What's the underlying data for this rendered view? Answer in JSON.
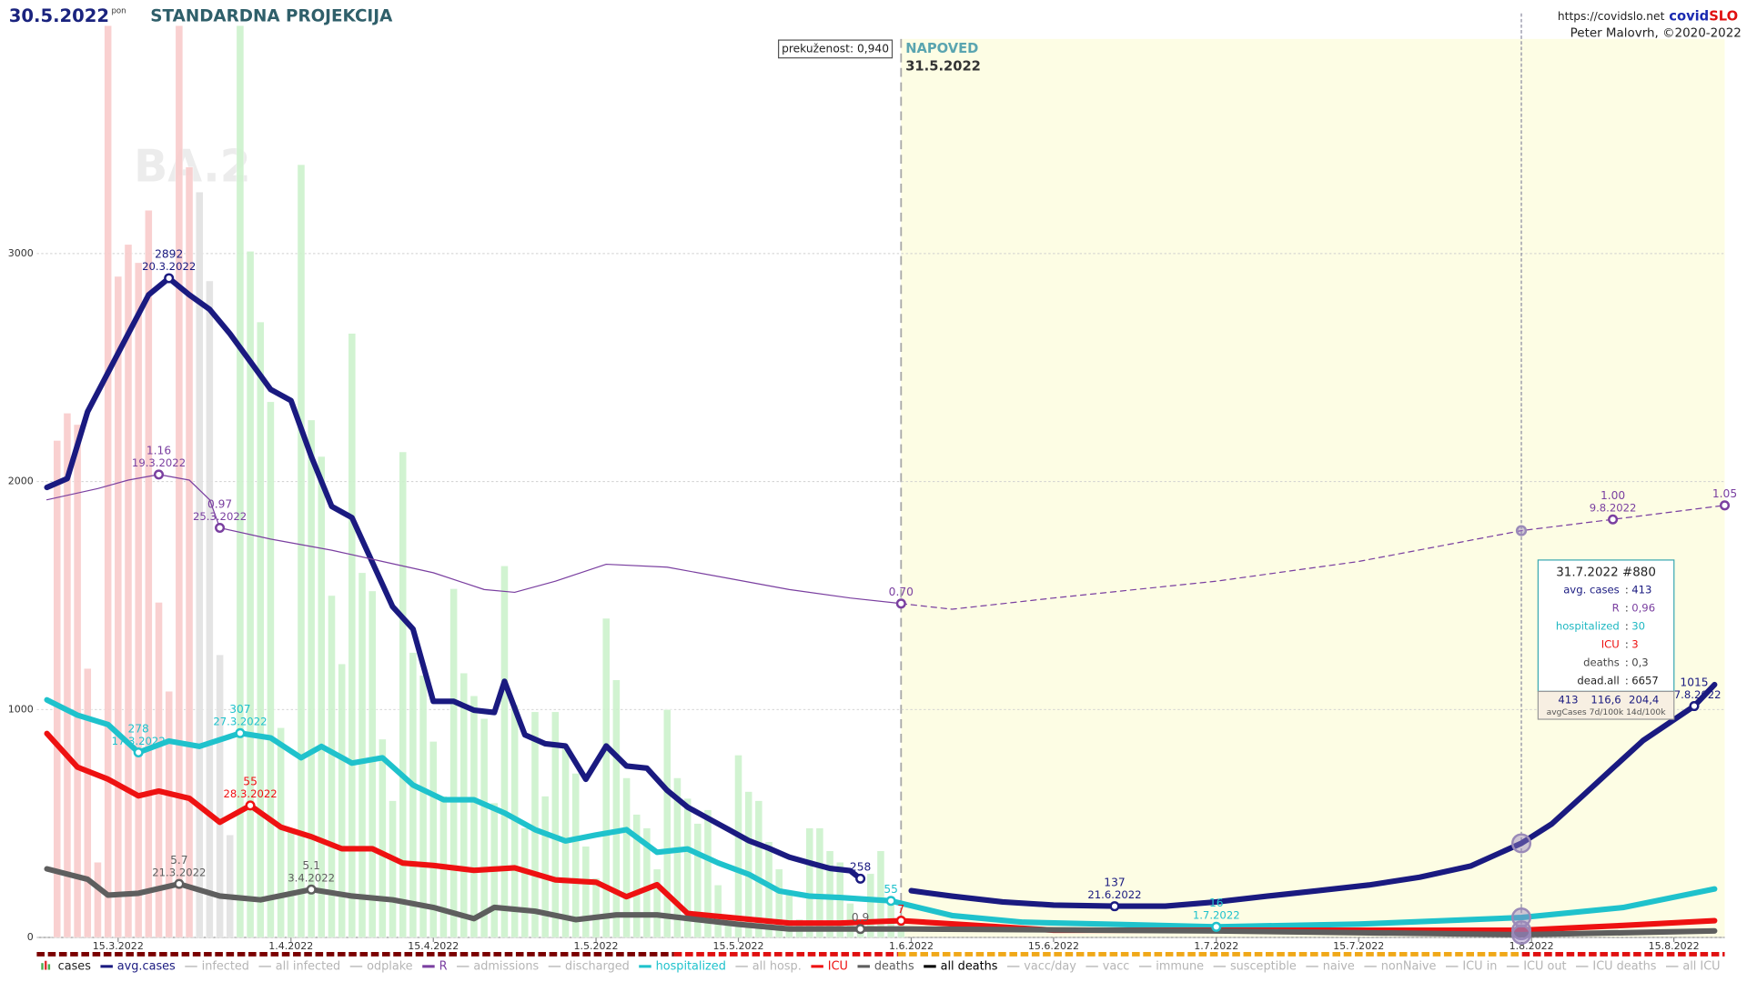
{
  "chart_data": {
    "type": "line",
    "date": "30.5.2022",
    "weekday": "pon",
    "title": "STANDARDNA PROJEKCIJA",
    "source_url": "https://covidslo.net",
    "brand": [
      "covid",
      "SLO"
    ],
    "author": "Peter Malovrh, ©2020-2022",
    "immunity_label": "prekuženost: 0,940",
    "watermark": "BA.2",
    "forecast": {
      "label": "NAPOVED",
      "date": "31.5.2022"
    },
    "xlim": [
      "7.3.2022",
      "20.8.2022"
    ],
    "xticks": [
      "15.3.2022",
      "1.4.2022",
      "15.4.2022",
      "1.5.2022",
      "15.5.2022",
      "1.6.2022",
      "15.6.2022",
      "1.7.2022",
      "15.7.2022",
      "1.8.2022",
      "15.8.2022"
    ],
    "ylim": [
      0,
      4000
    ],
    "yticks": [
      0,
      1000,
      2000,
      3000
    ],
    "grid": true,
    "series": [
      {
        "name": "cases",
        "type": "bar",
        "active": true,
        "color": "#4caf50",
        "x": [
          "9.3.2022",
          "10.3.2022",
          "11.3.2022",
          "12.3.2022",
          "13.3.2022",
          "14.3.2022",
          "15.3.2022",
          "16.3.2022",
          "17.3.2022",
          "18.3.2022",
          "19.3.2022",
          "20.3.2022",
          "21.3.2022",
          "22.3.2022",
          "23.3.2022",
          "24.3.2022",
          "25.3.2022",
          "26.3.2022",
          "27.3.2022",
          "28.3.2022",
          "29.3.2022",
          "30.3.2022",
          "31.3.2022",
          "1.4.2022",
          "2.4.2022",
          "3.4.2022",
          "4.4.2022",
          "5.4.2022",
          "6.4.2022",
          "7.4.2022",
          "8.4.2022",
          "9.4.2022",
          "10.4.2022",
          "11.4.2022",
          "12.4.2022",
          "13.4.2022",
          "14.4.2022",
          "15.4.2022",
          "16.4.2022",
          "17.4.2022",
          "18.4.2022",
          "19.4.2022",
          "20.4.2022",
          "21.4.2022",
          "22.4.2022",
          "23.4.2022",
          "24.4.2022",
          "25.4.2022",
          "26.4.2022",
          "27.4.2022",
          "28.4.2022",
          "29.4.2022",
          "30.4.2022",
          "1.5.2022",
          "2.5.2022",
          "3.5.2022",
          "4.5.2022",
          "5.5.2022",
          "6.5.2022",
          "7.5.2022",
          "8.5.2022",
          "9.5.2022",
          "10.5.2022",
          "11.5.2022",
          "12.5.2022",
          "13.5.2022",
          "14.5.2022",
          "15.5.2022",
          "16.5.2022",
          "17.5.2022",
          "18.5.2022",
          "19.5.2022",
          "20.5.2022",
          "21.5.2022",
          "22.5.2022",
          "23.5.2022",
          "24.5.2022",
          "25.5.2022",
          "26.5.2022",
          "27.5.2022",
          "28.5.2022",
          "29.5.2022",
          "30.5.2022",
          "31.5.2022"
        ],
        "values": [
          2180,
          2300,
          2250,
          1180,
          330,
          4000,
          2900,
          3040,
          2960,
          3190,
          1470,
          1080,
          4000,
          3380,
          3270,
          2880,
          1240,
          450,
          4000,
          3010,
          2700,
          2350,
          920,
          480,
          3390,
          2270,
          2110,
          1500,
          1200,
          2650,
          1600,
          1520,
          870,
          600,
          2130,
          1250,
          1150,
          860,
          620,
          1530,
          1160,
          1060,
          960,
          590,
          1630,
          1020,
          480,
          990,
          620,
          990,
          830,
          720,
          400,
          260,
          1400,
          1130,
          700,
          540,
          480,
          300,
          1000,
          700,
          610,
          500,
          560,
          230,
          100,
          800,
          640,
          600,
          420,
          300,
          190,
          80,
          480,
          480,
          380,
          330,
          150,
          80,
          280,
          380,
          170,
          60
        ],
        "colors": [
          "#f9cccc",
          "#f9cccc",
          "#f9cccc",
          "#f9cccc",
          "#f9cccc",
          "#f9cccc",
          "#f9cccc",
          "#f9cccc",
          "#f9cccc",
          "#f9cccc",
          "#f9cccc",
          "#f9cccc",
          "#f9cccc",
          "#f9cccc",
          "#e2e2e2",
          "#e2e2e2",
          "#e2e2e2",
          "#e2e2e2",
          "#cdf2cd",
          "#cdf2cd",
          "#cdf2cd",
          "#cdf2cd",
          "#cdf2cd",
          "#cdf2cd",
          "#cdf2cd",
          "#cdf2cd",
          "#cdf2cd",
          "#cdf2cd",
          "#cdf2cd",
          "#cdf2cd",
          "#cdf2cd",
          "#cdf2cd",
          "#cdf2cd",
          "#cdf2cd",
          "#cdf2cd",
          "#cdf2cd",
          "#cdf2cd",
          "#cdf2cd",
          "#cdf2cd",
          "#cdf2cd",
          "#cdf2cd",
          "#cdf2cd",
          "#cdf2cd",
          "#cdf2cd",
          "#cdf2cd",
          "#cdf2cd",
          "#cdf2cd",
          "#cdf2cd",
          "#cdf2cd",
          "#cdf2cd",
          "#cdf2cd",
          "#cdf2cd",
          "#cdf2cd",
          "#cdf2cd",
          "#cdf2cd",
          "#cdf2cd",
          "#cdf2cd",
          "#cdf2cd",
          "#cdf2cd",
          "#cdf2cd",
          "#cdf2cd",
          "#cdf2cd",
          "#cdf2cd",
          "#cdf2cd",
          "#cdf2cd",
          "#cdf2cd",
          "#cdf2cd",
          "#cdf2cd",
          "#cdf2cd",
          "#cdf2cd",
          "#cdf2cd",
          "#cdf2cd",
          "#cdf2cd",
          "#cdf2cd",
          "#cdf2cd",
          "#cdf2cd",
          "#cdf2cd",
          "#cdf2cd",
          "#cdf2cd",
          "#cdf2cd",
          "#cdf2cd",
          "#cdf2cd",
          "#cdf2cd",
          "#cdf2cd"
        ]
      },
      {
        "name": "avg.cases",
        "type": "line",
        "active": true,
        "color": "#1a1a80",
        "line_width": 5,
        "x": [
          "8.3.2022",
          "10.3.2022",
          "12.3.2022",
          "14.3.2022",
          "16.3.2022",
          "18.3.2022",
          "20.3.2022",
          "22.3.2022",
          "24.3.2022",
          "26.3.2022",
          "28.3.2022",
          "30.3.2022",
          "1.4.2022",
          "3.4.2022",
          "5.4.2022",
          "7.4.2022",
          "9.4.2022",
          "11.4.2022",
          "13.4.2022",
          "15.4.2022",
          "17.4.2022",
          "19.4.2022",
          "21.4.2022",
          "22.4.2022",
          "24.4.2022",
          "26.4.2022",
          "28.4.2022",
          "30.4.2022",
          "2.5.2022",
          "4.5.2022",
          "6.5.2022",
          "8.5.2022",
          "10.5.2022",
          "12.5.2022",
          "14.5.2022",
          "16.5.2022",
          "18.5.2022",
          "20.5.2022",
          "22.5.2022",
          "24.5.2022",
          "26.5.2022",
          "27.5.2022",
          "31.5.2022",
          "1.6.2022",
          "5.6.2022",
          "10.6.2022",
          "15.6.2022",
          "21.6.2022",
          "26.6.2022",
          "1.7.2022",
          "6.7.2022",
          "11.7.2022",
          "16.7.2022",
          "21.7.2022",
          "26.7.2022",
          "31.7.2022",
          "3.8.2022",
          "6.8.2022",
          "9.8.2022",
          "12.8.2022",
          "17.8.2022",
          "19.8.2022"
        ],
        "values": [
          1974,
          2013,
          2306,
          2477,
          2648,
          2819,
          2892,
          2819,
          2755,
          2648,
          2526,
          2404,
          2355,
          2110,
          1891,
          1842,
          1646,
          1451,
          1353,
          1036,
          1036,
          997,
          987,
          1124,
          889,
          850,
          840,
          694,
          840,
          752,
          743,
          645,
          572,
          523,
          474,
          425,
          391,
          352,
          327,
          303,
          293,
          258,
          null,
          205,
          181,
          156,
          142,
          137,
          137,
          156,
          181,
          205,
          230,
          264,
          313,
          413,
          498,
          620,
          743,
          865,
          1015,
          1109
        ],
        "annotations": [
          {
            "date": "20.3.2022",
            "value": 2892
          },
          {
            "x": "27.5.2022",
            "value": 258
          },
          {
            "date": "21.6.2022",
            "value": 137
          },
          {
            "date": "17.8.2022",
            "value": 1015
          }
        ]
      },
      {
        "name": "infected",
        "active": false,
        "color": "#c8c8c8"
      },
      {
        "name": "all infected",
        "active": false,
        "color": "#c8c8c8"
      },
      {
        "name": "odplake",
        "active": false,
        "color": "#c8c8c8"
      },
      {
        "name": "R",
        "type": "line",
        "active": true,
        "color": "#7a3fa0",
        "line_width": 1,
        "forecast_dash": true,
        "ylim": [
          -0.49,
          2.76
        ],
        "x": [
          "8.3.2022",
          "13.3.2022",
          "16.3.2022",
          "19.3.2022",
          "22.3.2022",
          "24.3.2022",
          "25.3.2022",
          "30.3.2022",
          "5.4.2022",
          "10.4.2022",
          "15.4.2022",
          "20.4.2022",
          "23.4.2022",
          "27.4.2022",
          "2.5.2022",
          "8.5.2022",
          "14.5.2022",
          "20.5.2022",
          "26.5.2022",
          "31.5.2022",
          "5.6.2022",
          "15.6.2022",
          "1.7.2022",
          "15.7.2022",
          "31.7.2022",
          "9.8.2022",
          "20.8.2022"
        ],
        "values": [
          1.07,
          1.11,
          1.14,
          1.16,
          1.14,
          1.07,
          0.97,
          0.93,
          0.89,
          0.85,
          0.81,
          0.75,
          0.74,
          0.78,
          0.84,
          0.83,
          0.79,
          0.75,
          0.72,
          0.7,
          0.68,
          0.72,
          0.78,
          0.85,
          0.96,
          1,
          1.05
        ],
        "annotations": [
          {
            "date": "19.3.2022",
            "value": 1.16
          },
          {
            "date": "25.3.2022",
            "value": 0.97
          },
          {
            "x": "31.5.2022",
            "value": 0.7,
            "label": "0.70"
          },
          {
            "date": "9.8.2022",
            "value": 1,
            "label": "1.00"
          },
          {
            "x": "20.8.2022",
            "value": 1.05
          }
        ]
      },
      {
        "name": "admissions",
        "active": false,
        "color": "#c8c8c8"
      },
      {
        "name": "discharged",
        "active": false,
        "color": "#c8c8c8"
      },
      {
        "name": "hospitalized",
        "type": "line",
        "active": true,
        "color": "#1fc2cc",
        "line_width": 5,
        "ylim": [
          0,
          1370
        ],
        "x": [
          "8.3.2022",
          "11.3.2022",
          "14.3.2022",
          "17.3.2022",
          "20.3.2022",
          "23.3.2022",
          "27.3.2022",
          "30.3.2022",
          "2.4.2022",
          "4.4.2022",
          "7.4.2022",
          "10.4.2022",
          "13.4.2022",
          "16.4.2022",
          "19.4.2022",
          "22.4.2022",
          "25.4.2022",
          "28.4.2022",
          "1.5.2022",
          "4.5.2022",
          "7.5.2022",
          "10.5.2022",
          "13.5.2022",
          "16.5.2022",
          "19.5.2022",
          "22.5.2022",
          "25.5.2022",
          "28.5.2022",
          "30.5.2022",
          "5.6.2022",
          "12.6.2022",
          "20.6.2022",
          "1.7.2022",
          "15.7.2022",
          "31.7.2022",
          "10.8.2022",
          "19.8.2022"
        ],
        "values": [
          357,
          334,
          320,
          278,
          295,
          287,
          307,
          300,
          270,
          287,
          262,
          270,
          229,
          207,
          207,
          187,
          162,
          145,
          154,
          162,
          128,
          133,
          112,
          95,
          70,
          62,
          60,
          57,
          55,
          33,
          23,
          20,
          16,
          20,
          30,
          45,
          73
        ],
        "annotations": [
          {
            "date": "17.3.2022",
            "value": 278
          },
          {
            "date": "27.3.2022",
            "value": 307
          },
          {
            "x": "30.5.2022",
            "value": 55
          },
          {
            "date": "1.7.2022",
            "value": 16
          }
        ]
      },
      {
        "name": "all hosp.",
        "active": false,
        "color": "#c8c8c8"
      },
      {
        "name": "ICU",
        "type": "line",
        "active": true,
        "color": "#ee1111",
        "line_width": 5,
        "ylim": [
          0,
          380
        ],
        "x": [
          "8.3.2022",
          "11.3.2022",
          "14.3.2022",
          "17.3.2022",
          "19.3.2022",
          "22.3.2022",
          "25.3.2022",
          "28.3.2022",
          "31.3.2022",
          "3.4.2022",
          "6.4.2022",
          "9.4.2022",
          "12.4.2022",
          "15.4.2022",
          "19.4.2022",
          "23.4.2022",
          "27.4.2022",
          "1.5.2022",
          "4.5.2022",
          "7.5.2022",
          "10.5.2022",
          "15.5.2022",
          "20.5.2022",
          "25.5.2022",
          "31.5.2022",
          "15.6.2022",
          "1.7.2022",
          "31.7.2022",
          "10.8.2022",
          "19.8.2022"
        ],
        "values": [
          85,
          71,
          66,
          59,
          61,
          58,
          48,
          55,
          46,
          42,
          37,
          37,
          31,
          30,
          28,
          29,
          24,
          23,
          17,
          22,
          10,
          8,
          6,
          6,
          7,
          3,
          3,
          3,
          5,
          7
        ],
        "annotations": [
          {
            "date": "28.3.2022",
            "value": 55
          },
          {
            "x": "31.5.2022",
            "value": 7
          }
        ]
      },
      {
        "name": "deaths",
        "type": "line",
        "active": true,
        "color": "#5e5e5e",
        "line_width": 5,
        "ylim": [
          0,
          97
        ],
        "x": [
          "8.3.2022",
          "12.3.2022",
          "14.3.2022",
          "17.3.2022",
          "21.3.2022",
          "25.3.2022",
          "29.3.2022",
          "3.4.2022",
          "7.4.2022",
          "11.4.2022",
          "15.4.2022",
          "19.4.2022",
          "21.4.2022",
          "25.4.2022",
          "29.4.2022",
          "3.5.2022",
          "7.5.2022",
          "11.5.2022",
          "15.5.2022",
          "20.5.2022",
          "27.5.2022",
          "1.6.2022",
          "1.7.2022",
          "31.7.2022",
          "19.8.2022"
        ],
        "values": [
          7.3,
          6.2,
          4.5,
          4.7,
          5.7,
          4.4,
          4,
          5.1,
          4.4,
          4,
          3.2,
          2,
          3.2,
          2.8,
          1.9,
          2.4,
          2.4,
          1.9,
          1.4,
          0.9,
          0.9,
          0.9,
          0.7,
          0.3,
          0.7
        ],
        "annotations": [
          {
            "date": "21.3.2022",
            "value": 5.7
          },
          {
            "date": "3.4.2022",
            "value": 5.1
          },
          {
            "x": "27.5.2022",
            "value": 0.9
          }
        ]
      },
      {
        "name": "all deaths",
        "active": true,
        "color": "#000000"
      },
      {
        "name": "vacc/day",
        "active": false,
        "color": "#c8c8c8"
      },
      {
        "name": "vacc",
        "active": false,
        "color": "#c8c8c8"
      },
      {
        "name": "immune",
        "active": false,
        "color": "#c8c8c8"
      },
      {
        "name": "susceptible",
        "active": false,
        "color": "#c8c8c8"
      },
      {
        "name": "naive",
        "active": false,
        "color": "#c8c8c8"
      },
      {
        "name": "nonNaive",
        "active": false,
        "color": "#c8c8c8"
      },
      {
        "name": "ICU in",
        "active": false,
        "color": "#c8c8c8"
      },
      {
        "name": "ICU out",
        "active": false,
        "color": "#c8c8c8"
      },
      {
        "name": "ICU deaths",
        "active": false,
        "color": "#c8c8c8"
      },
      {
        "name": "all ICU",
        "active": false,
        "color": "#c8c8c8"
      }
    ],
    "tooltip": {
      "x": "31.7.2022",
      "title": "31.7.2022 #880",
      "rows": [
        {
          "label": "avg. cases",
          "value": "413",
          "color": "#1a1a80"
        },
        {
          "label": "R",
          "value": "0,96",
          "color": "#7a3fa0"
        },
        {
          "label": "hospitalized",
          "value": "30",
          "color": "#1fb8c2"
        },
        {
          "label": "ICU",
          "value": "3",
          "color": "#ee1111"
        },
        {
          "label": "deaths",
          "value": "0,3",
          "color": "#444444"
        },
        {
          "label": "dead.all",
          "value": "6657",
          "color": "#222222"
        }
      ],
      "footer_values": [
        "413",
        "116,6",
        "204,4"
      ],
      "footer_caption": "avgCases 7d/100k 14d/100k"
    }
  }
}
